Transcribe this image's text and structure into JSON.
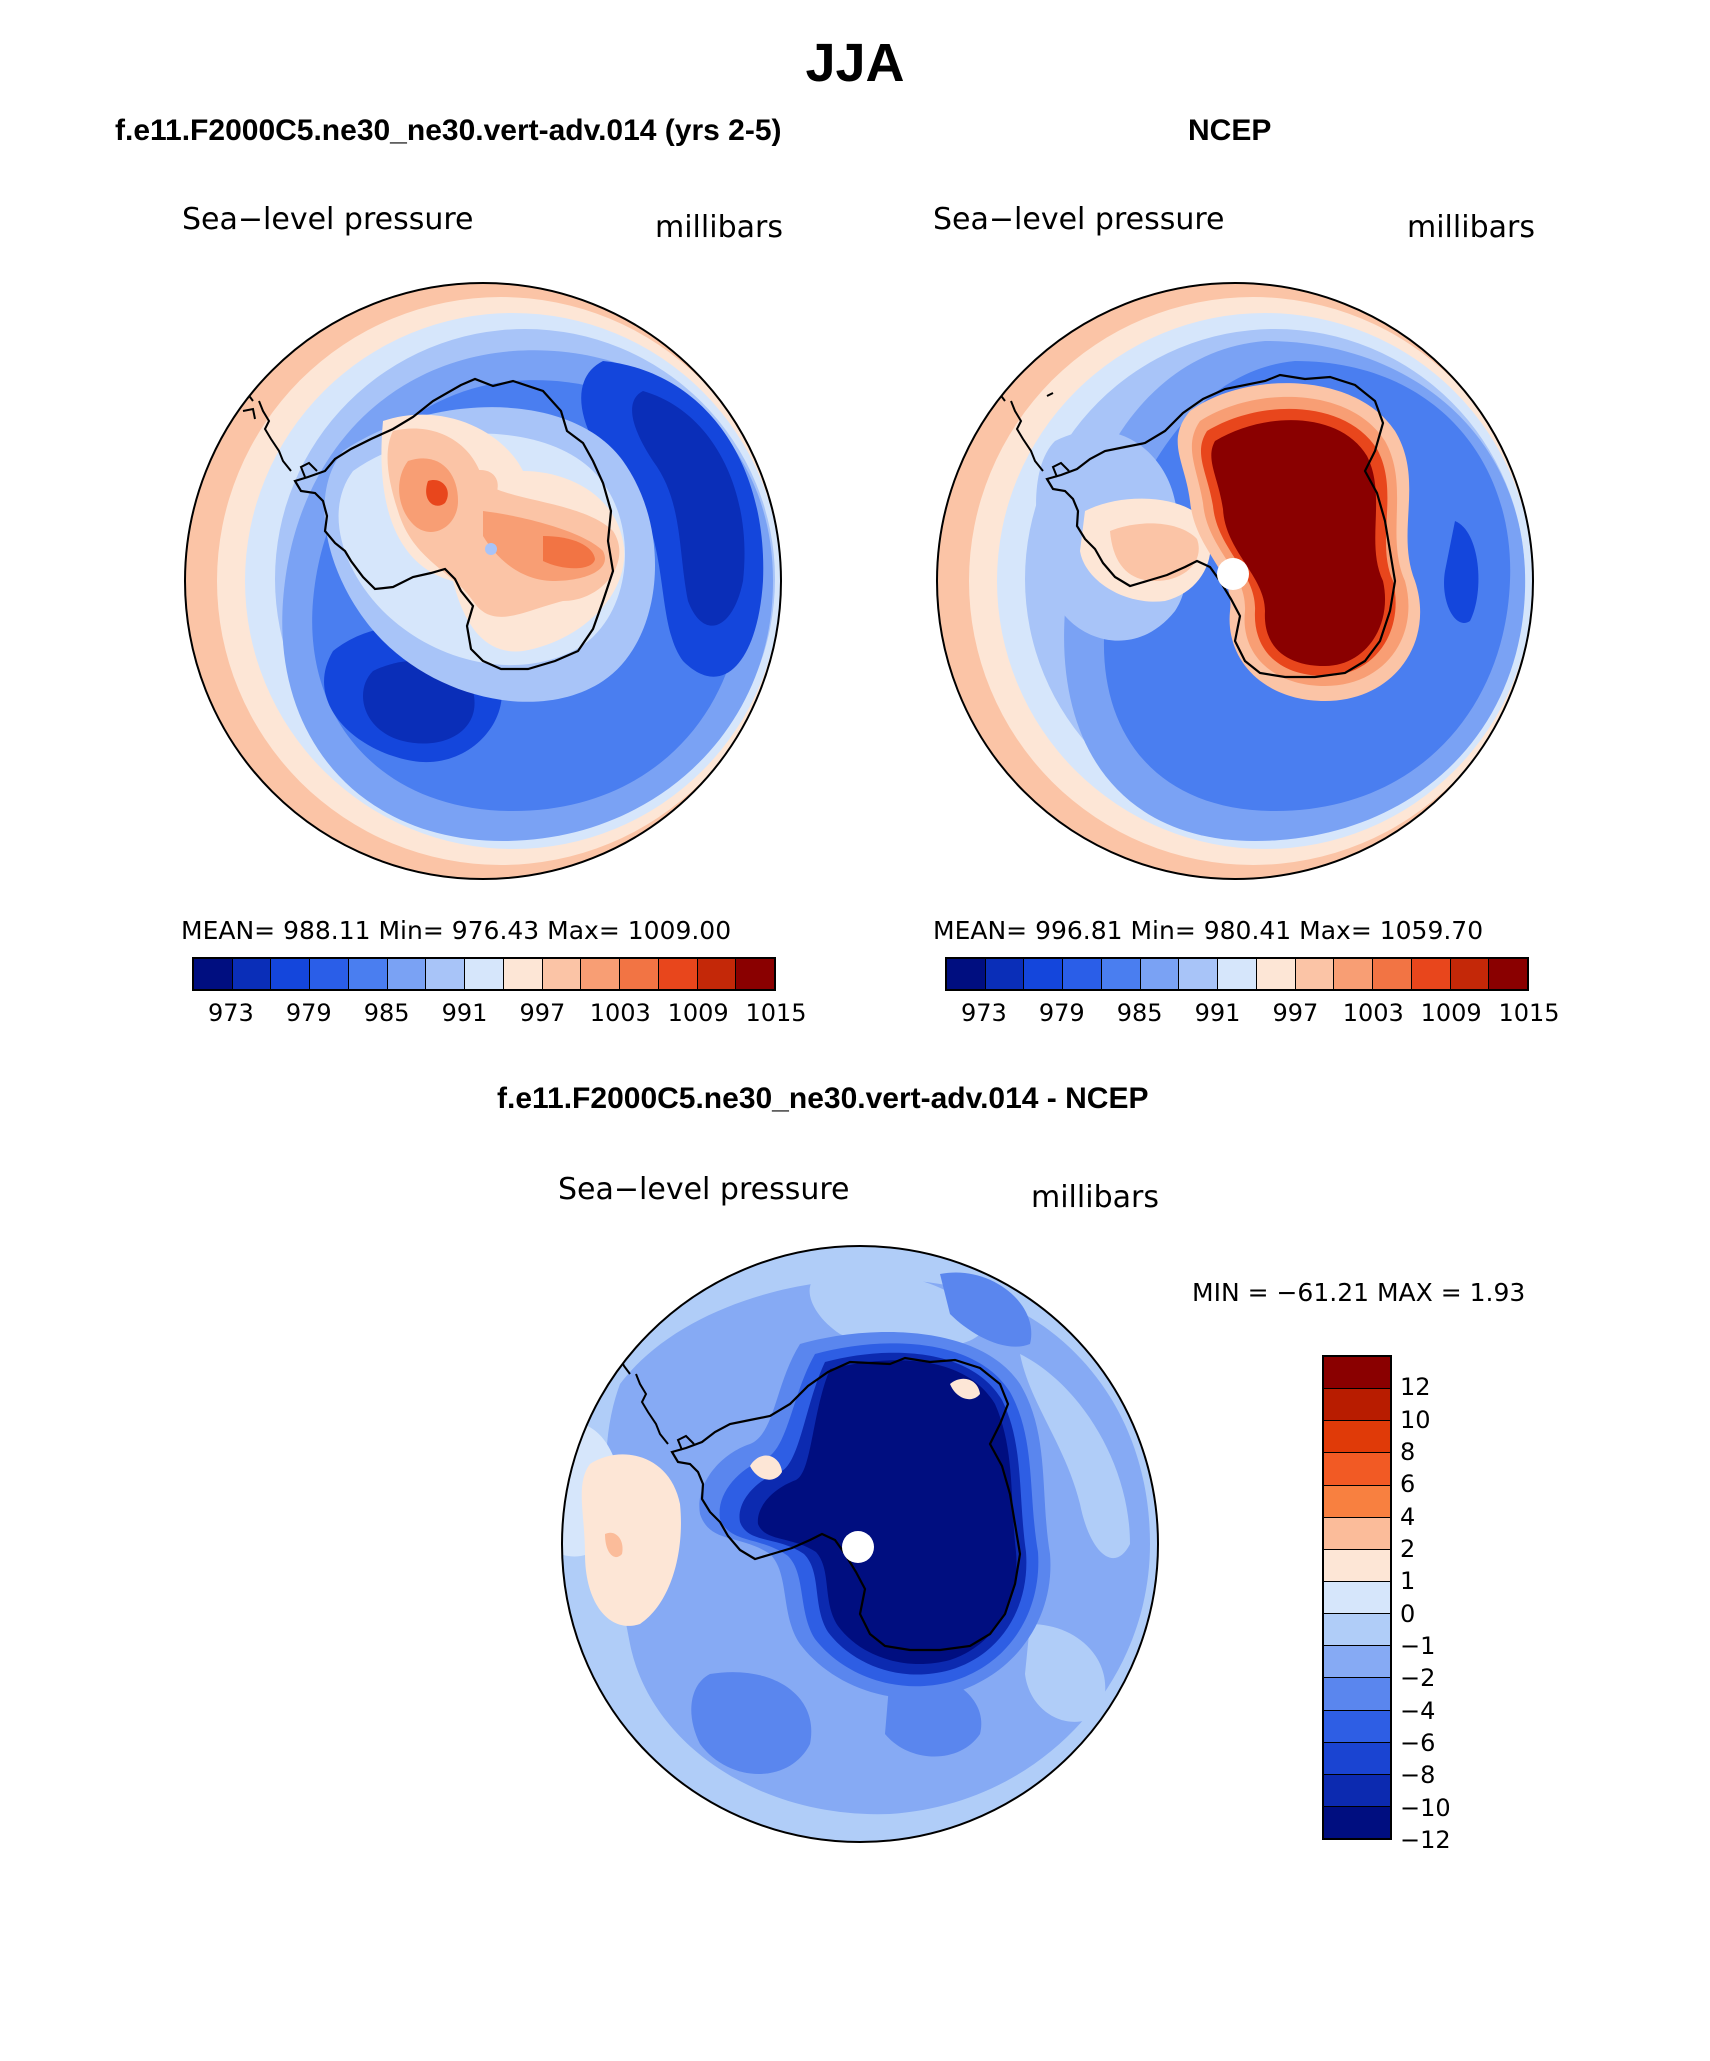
{
  "figure": {
    "title": "JJA",
    "colors": {
      "abs_palette": [
        "#000e80",
        "#0a2eb8",
        "#1446dc",
        "#2a5ee8",
        "#4a7ef0",
        "#7aa2f4",
        "#a8c4f8",
        "#d6e6fb",
        "#fde6d6",
        "#fbc4a6",
        "#f89e74",
        "#f27444",
        "#e8461c",
        "#c42808",
        "#8a0000"
      ],
      "diff_palette": [
        "#8a0000",
        "#b81c00",
        "#e03a08",
        "#f25a24",
        "#f88040",
        "#fbbc9a",
        "#fde6d6",
        "#d6e6fb",
        "#b0cdf8",
        "#86aaf4",
        "#5a86ee",
        "#2e5ee4",
        "#1a44d2",
        "#0c2ab0",
        "#000e80"
      ],
      "coastline": "#000000",
      "pole_hole": "#ffffff"
    },
    "panels": [
      {
        "title": "f.e11.F2000C5.ne30_ne30.vert-adv.014 (yrs 2-5)",
        "variable": "Sea−level pressure",
        "units": "millibars",
        "stats": "MEAN= 988.11   Min= 976.43   Max= 1009.00",
        "colorbar_labels": [
          "973",
          "979",
          "985",
          "991",
          "997",
          "1003",
          "1009",
          "1015"
        ]
      },
      {
        "title": "NCEP",
        "variable": "Sea−level pressure",
        "units": "millibars",
        "stats": "MEAN= 996.81   Min= 980.41   Max= 1059.70",
        "colorbar_labels": [
          "973",
          "979",
          "985",
          "991",
          "997",
          "1003",
          "1009",
          "1015"
        ]
      },
      {
        "title": "f.e11.F2000C5.ne30_ne30.vert-adv.014 - NCEP",
        "variable": "Sea−level pressure",
        "units": "millibars",
        "stats": "MIN = −61.21  MAX =    1.93",
        "colorbar_labels": [
          "12",
          "10",
          "8",
          "6",
          "4",
          "2",
          "1",
          "0",
          "−1",
          "−2",
          "−4",
          "−6",
          "−8",
          "−10",
          "−12"
        ]
      }
    ]
  }
}
